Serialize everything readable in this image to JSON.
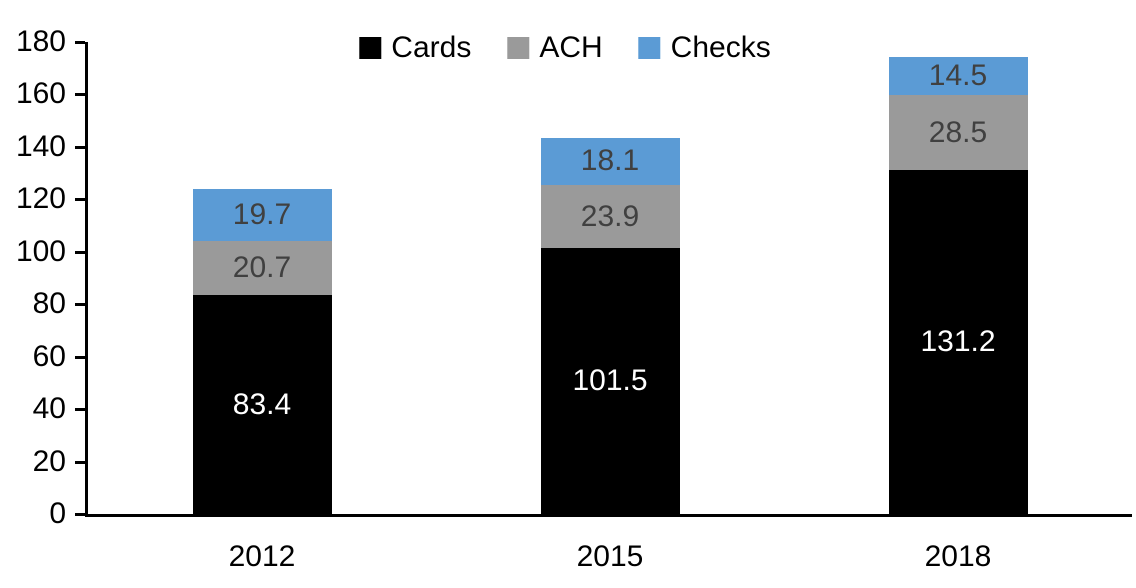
{
  "chart_data": {
    "type": "bar",
    "stacked": true,
    "title": "",
    "xlabel": "",
    "ylabel": "",
    "categories": [
      "2012",
      "2015",
      "2018"
    ],
    "series": [
      {
        "name": "Cards",
        "values": [
          83.4,
          101.5,
          131.2
        ],
        "color": "#000000",
        "label_color": "#ffffff"
      },
      {
        "name": "ACH",
        "values": [
          20.7,
          23.9,
          28.5
        ],
        "color": "#9A9A9A",
        "label_color": "#404040"
      },
      {
        "name": "Checks",
        "values": [
          19.7,
          18.1,
          14.5
        ],
        "color": "#5B9BD5",
        "label_color": "#404040"
      }
    ],
    "totals": [
      123.8,
      143.5,
      174.2
    ],
    "ylim": [
      0,
      180
    ],
    "ytick_step": 20,
    "yticks": [
      0,
      20,
      40,
      60,
      80,
      100,
      120,
      140,
      160,
      180
    ],
    "grid": false,
    "legend_position": "top-center",
    "value_label_decimals": 1
  }
}
